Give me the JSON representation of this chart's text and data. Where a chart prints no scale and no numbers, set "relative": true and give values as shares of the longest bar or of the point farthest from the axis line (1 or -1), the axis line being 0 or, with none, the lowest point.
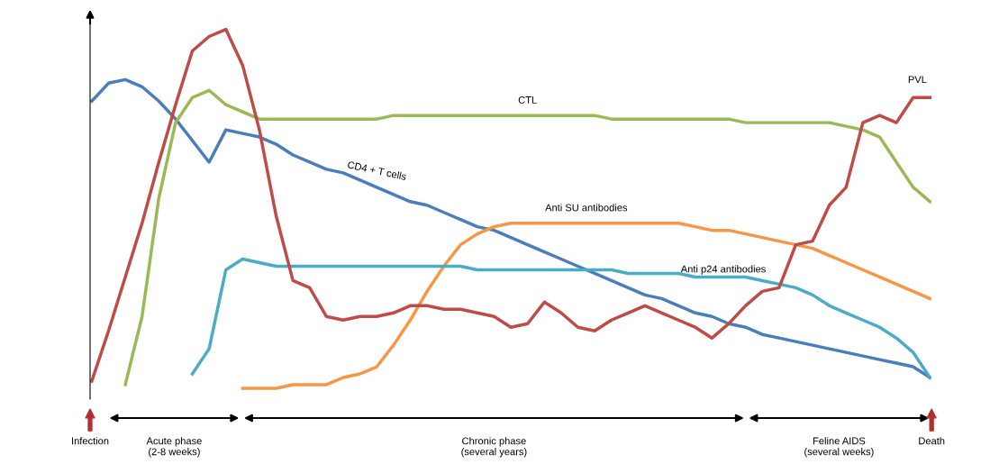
{
  "chart_data": {
    "type": "line",
    "relative": true,
    "marker": "none",
    "line_style": "solid",
    "categories": [
      null,
      null,
      null,
      null,
      null,
      null,
      null,
      null,
      null,
      null,
      null,
      null,
      null,
      null,
      null,
      null,
      null,
      null,
      null,
      null,
      null,
      null,
      null,
      null,
      null,
      null,
      null,
      null,
      null,
      null,
      null,
      null,
      null,
      null,
      null,
      null,
      null,
      null,
      null,
      null,
      null,
      null,
      null,
      null,
      null,
      null,
      null,
      null,
      null,
      null,
      null
    ],
    "series": [
      {
        "name": "CD4 + T cells",
        "color": "#4a7ebb",
        "values": [
          0.8,
          0.85,
          0.86,
          0.84,
          0.8,
          0.75,
          0.69,
          0.63,
          0.72,
          0.71,
          0.7,
          0.68,
          0.65,
          0.63,
          0.61,
          0.6,
          0.58,
          0.56,
          0.54,
          0.52,
          0.51,
          0.49,
          0.47,
          0.45,
          0.44,
          0.42,
          0.4,
          0.38,
          0.36,
          0.34,
          0.32,
          0.3,
          0.28,
          0.26,
          0.25,
          0.23,
          0.21,
          0.2,
          0.18,
          0.17,
          0.15,
          0.14,
          0.13,
          0.12,
          0.11,
          0.1,
          0.09,
          0.08,
          0.07,
          0.06,
          0.03
        ]
      },
      {
        "name": "CTL",
        "color": "#98b954",
        "values": [
          null,
          null,
          0.01,
          0.2,
          0.53,
          0.74,
          0.81,
          0.83,
          0.79,
          0.77,
          0.75,
          0.75,
          0.75,
          0.75,
          0.75,
          0.75,
          0.75,
          0.75,
          0.76,
          0.76,
          0.76,
          0.76,
          0.76,
          0.76,
          0.76,
          0.76,
          0.76,
          0.76,
          0.76,
          0.76,
          0.76,
          0.75,
          0.75,
          0.75,
          0.75,
          0.75,
          0.75,
          0.75,
          0.75,
          0.74,
          0.74,
          0.74,
          0.74,
          0.74,
          0.74,
          0.73,
          0.72,
          0.7,
          0.63,
          0.56,
          0.52
        ]
      },
      {
        "name": "Anti SU antibodies",
        "color": "#f79646",
        "values": [
          null,
          null,
          null,
          null,
          null,
          null,
          null,
          null,
          null,
          0,
          0,
          0,
          0.01,
          0.01,
          0.01,
          0.03,
          0.04,
          0.06,
          0.12,
          0.19,
          0.27,
          0.34,
          0.4,
          0.43,
          0.45,
          0.46,
          0.46,
          0.46,
          0.46,
          0.46,
          0.46,
          0.46,
          0.46,
          0.46,
          0.46,
          0.46,
          0.45,
          0.44,
          0.44,
          0.43,
          0.42,
          0.41,
          0.4,
          0.39,
          0.37,
          0.35,
          0.33,
          0.31,
          0.29,
          0.27,
          0.25
        ]
      },
      {
        "name": "Anti p24 antibodies",
        "color": "#4bacc6",
        "values": [
          null,
          null,
          null,
          null,
          null,
          null,
          0.04,
          0.11,
          0.33,
          0.36,
          0.35,
          0.34,
          0.34,
          0.34,
          0.34,
          0.34,
          0.34,
          0.34,
          0.34,
          0.34,
          0.34,
          0.34,
          0.34,
          0.33,
          0.33,
          0.33,
          0.33,
          0.33,
          0.33,
          0.33,
          0.33,
          0.33,
          0.32,
          0.32,
          0.32,
          0.32,
          0.31,
          0.31,
          0.31,
          0.31,
          0.3,
          0.29,
          0.28,
          0.26,
          0.23,
          0.21,
          0.19,
          0.17,
          0.14,
          0.1,
          0.03
        ]
      },
      {
        "name": "PVL",
        "color": "#be4b48",
        "values": [
          0.02,
          0.16,
          0.31,
          0.46,
          0.63,
          0.79,
          0.94,
          0.98,
          1,
          0.9,
          0.72,
          0.48,
          0.3,
          0.28,
          0.2,
          0.19,
          0.2,
          0.2,
          0.21,
          0.23,
          0.23,
          0.22,
          0.22,
          0.21,
          0.2,
          0.17,
          0.18,
          0.24,
          0.21,
          0.17,
          0.16,
          0.19,
          0.21,
          0.23,
          0.21,
          0.19,
          0.17,
          0.14,
          0.18,
          0.23,
          0.27,
          0.28,
          0.4,
          0.41,
          0.51,
          0.56,
          0.74,
          0.76,
          0.74,
          0.81,
          0.81
        ]
      }
    ],
    "annotations": [
      "Infection",
      "Acute phase\n(2-8 weeks)",
      "Chronic phase\n(several years)",
      "Feline AIDS\n(several weeks)",
      "Death"
    ]
  }
}
